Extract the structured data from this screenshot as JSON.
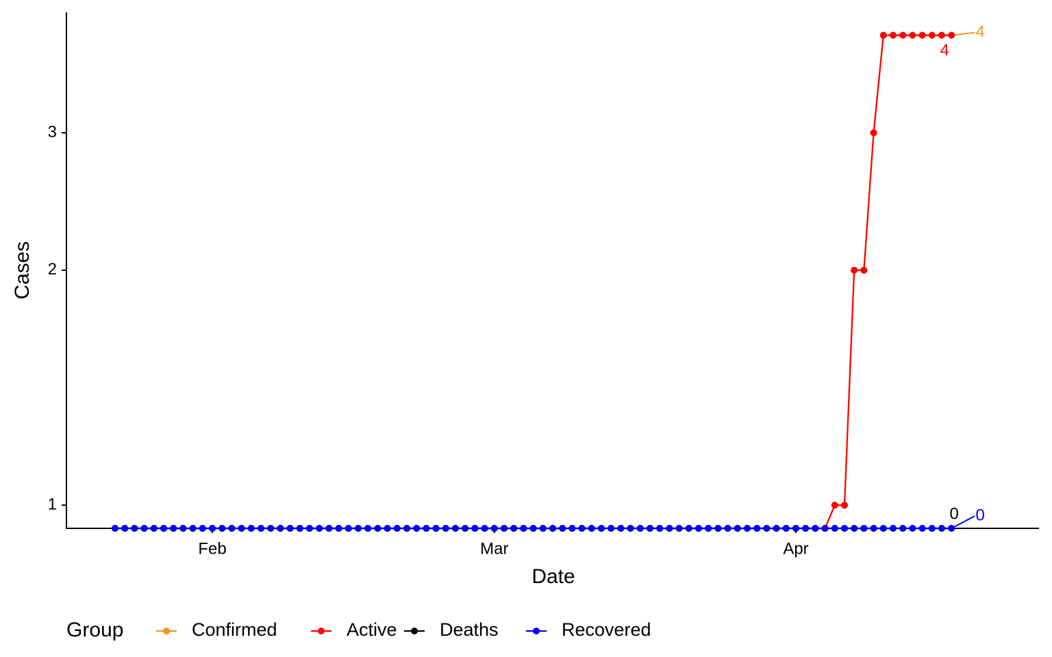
{
  "chart_data": {
    "type": "line",
    "xlabel": "Date",
    "ylabel": "Cases",
    "legend_title": "Group",
    "legend": "bottom",
    "log_y": true,
    "x": [
      "01-22",
      "01-23",
      "01-24",
      "01-25",
      "01-26",
      "01-27",
      "01-28",
      "01-29",
      "01-30",
      "01-31",
      "02-01",
      "02-02",
      "02-03",
      "02-04",
      "02-05",
      "02-06",
      "02-07",
      "02-08",
      "02-09",
      "02-10",
      "02-11",
      "02-12",
      "02-13",
      "02-14",
      "02-15",
      "02-16",
      "02-17",
      "02-18",
      "02-19",
      "02-20",
      "02-21",
      "02-22",
      "02-23",
      "02-24",
      "02-25",
      "02-26",
      "02-27",
      "02-28",
      "02-29",
      "03-01",
      "03-02",
      "03-03",
      "03-04",
      "03-05",
      "03-06",
      "03-07",
      "03-08",
      "03-09",
      "03-10",
      "03-11",
      "03-12",
      "03-13",
      "03-14",
      "03-15",
      "03-16",
      "03-17",
      "03-18",
      "03-19",
      "03-20",
      "03-21",
      "03-22",
      "03-23",
      "03-24",
      "03-25",
      "03-26",
      "03-27",
      "03-28",
      "03-29",
      "03-30",
      "03-31",
      "04-01",
      "04-02",
      "04-03",
      "04-04",
      "04-05",
      "04-06",
      "04-07",
      "04-08",
      "04-09",
      "04-10",
      "04-11",
      "04-12",
      "04-13",
      "04-14",
      "04-15",
      "04-16",
      "04-17"
    ],
    "series": [
      {
        "name": "Confirmed",
        "color": "#f7941d",
        "values": [
          0,
          0,
          0,
          0,
          0,
          0,
          0,
          0,
          0,
          0,
          0,
          0,
          0,
          0,
          0,
          0,
          0,
          0,
          0,
          0,
          0,
          0,
          0,
          0,
          0,
          0,
          0,
          0,
          0,
          0,
          0,
          0,
          0,
          0,
          0,
          0,
          0,
          0,
          0,
          0,
          0,
          0,
          0,
          0,
          0,
          0,
          0,
          0,
          0,
          0,
          0,
          0,
          0,
          0,
          0,
          0,
          0,
          0,
          0,
          0,
          0,
          0,
          0,
          0,
          0,
          0,
          0,
          0,
          0,
          0,
          0,
          0,
          0,
          0,
          1,
          1,
          2,
          2,
          3,
          4,
          4,
          4,
          4,
          4,
          4,
          4,
          4
        ]
      },
      {
        "name": "Active",
        "color": "#ff0000",
        "values": [
          0,
          0,
          0,
          0,
          0,
          0,
          0,
          0,
          0,
          0,
          0,
          0,
          0,
          0,
          0,
          0,
          0,
          0,
          0,
          0,
          0,
          0,
          0,
          0,
          0,
          0,
          0,
          0,
          0,
          0,
          0,
          0,
          0,
          0,
          0,
          0,
          0,
          0,
          0,
          0,
          0,
          0,
          0,
          0,
          0,
          0,
          0,
          0,
          0,
          0,
          0,
          0,
          0,
          0,
          0,
          0,
          0,
          0,
          0,
          0,
          0,
          0,
          0,
          0,
          0,
          0,
          0,
          0,
          0,
          0,
          0,
          0,
          0,
          0,
          1,
          1,
          2,
          2,
          3,
          4,
          4,
          4,
          4,
          4,
          4,
          4,
          4
        ]
      },
      {
        "name": "Deaths",
        "color": "#000000",
        "values": [
          0,
          0,
          0,
          0,
          0,
          0,
          0,
          0,
          0,
          0,
          0,
          0,
          0,
          0,
          0,
          0,
          0,
          0,
          0,
          0,
          0,
          0,
          0,
          0,
          0,
          0,
          0,
          0,
          0,
          0,
          0,
          0,
          0,
          0,
          0,
          0,
          0,
          0,
          0,
          0,
          0,
          0,
          0,
          0,
          0,
          0,
          0,
          0,
          0,
          0,
          0,
          0,
          0,
          0,
          0,
          0,
          0,
          0,
          0,
          0,
          0,
          0,
          0,
          0,
          0,
          0,
          0,
          0,
          0,
          0,
          0,
          0,
          0,
          0,
          0,
          0,
          0,
          0,
          0,
          0,
          0,
          0,
          0,
          0,
          0,
          0,
          0
        ]
      },
      {
        "name": "Recovered",
        "color": "#0000ff",
        "values": [
          0,
          0,
          0,
          0,
          0,
          0,
          0,
          0,
          0,
          0,
          0,
          0,
          0,
          0,
          0,
          0,
          0,
          0,
          0,
          0,
          0,
          0,
          0,
          0,
          0,
          0,
          0,
          0,
          0,
          0,
          0,
          0,
          0,
          0,
          0,
          0,
          0,
          0,
          0,
          0,
          0,
          0,
          0,
          0,
          0,
          0,
          0,
          0,
          0,
          0,
          0,
          0,
          0,
          0,
          0,
          0,
          0,
          0,
          0,
          0,
          0,
          0,
          0,
          0,
          0,
          0,
          0,
          0,
          0,
          0,
          0,
          0,
          0,
          0,
          0,
          0,
          0,
          0,
          0,
          0,
          0,
          0,
          0,
          0,
          0,
          0,
          0
        ]
      }
    ],
    "xlim": [
      "01-17",
      "04-26"
    ],
    "xticks": [
      {
        "value": "02-01",
        "label": "Feb"
      },
      {
        "value": "03-01",
        "label": "Mar"
      },
      {
        "value": "04-01",
        "label": "Apr"
      }
    ],
    "ylim": [
      0.934,
      4.28
    ],
    "yticks": [
      1,
      2,
      3
    ],
    "grid": false
  }
}
